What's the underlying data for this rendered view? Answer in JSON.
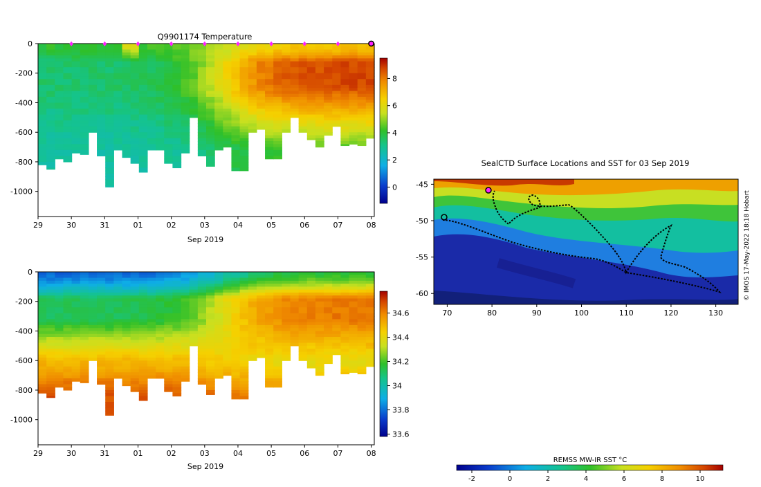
{
  "chart_data": [
    {
      "type": "heatmap",
      "title": "Q9901174  Temperature",
      "xlabel": "Sep 2019",
      "ylabel": "",
      "x_tick_labels": [
        "29",
        "30",
        "31",
        "01",
        "02",
        "03",
        "04",
        "05",
        "06",
        "07",
        "08"
      ],
      "y_tick_labels": [
        "0",
        "-200",
        "-400",
        "-600",
        "-800",
        "-1000"
      ],
      "ylim": [
        -1170,
        0
      ],
      "colorbar": {
        "range": [
          -1.2,
          9.5
        ],
        "ticks": [
          0,
          2,
          4,
          6,
          8
        ]
      },
      "profiles_count": 40,
      "surface_marker_days": [
        "30",
        "31",
        "01",
        "02",
        "03",
        "04",
        "05",
        "06",
        "07"
      ],
      "current_marker_day": "08"
    },
    {
      "type": "heatmap",
      "title": "",
      "xlabel": "Sep 2019",
      "ylabel": "",
      "x_tick_labels": [
        "29",
        "30",
        "31",
        "01",
        "02",
        "03",
        "04",
        "05",
        "06",
        "07",
        "08"
      ],
      "y_tick_labels": [
        "0",
        "-200",
        "-400",
        "-600",
        "-800",
        "-1000"
      ],
      "ylim": [
        -1170,
        0
      ],
      "colorbar": {
        "range": [
          33.58,
          34.78
        ],
        "ticks": [
          33.6,
          33.8,
          34,
          34.2,
          34.4,
          34.6
        ]
      }
    },
    {
      "type": "heatmap",
      "title": "SealCTD Surface Locations and SST for 03 Sep 2019",
      "xlabel": "",
      "ylabel": "",
      "xlim": [
        67,
        135
      ],
      "ylim": [
        -61.5,
        -44.3
      ],
      "x_tick_labels": [
        "70",
        "80",
        "90",
        "100",
        "110",
        "120",
        "130"
      ],
      "y_tick_labels": [
        "-45",
        "-50",
        "-55",
        "-60"
      ],
      "colorbar": {
        "label": "REMSS MW-IR SST °C",
        "range": [
          -2.8,
          11.2
        ],
        "ticks": [
          "-2",
          "0",
          "2",
          "4",
          "6",
          "8",
          "10"
        ]
      },
      "credit": "© IMOS 17-May-2022 18:18 Hobart"
    }
  ]
}
